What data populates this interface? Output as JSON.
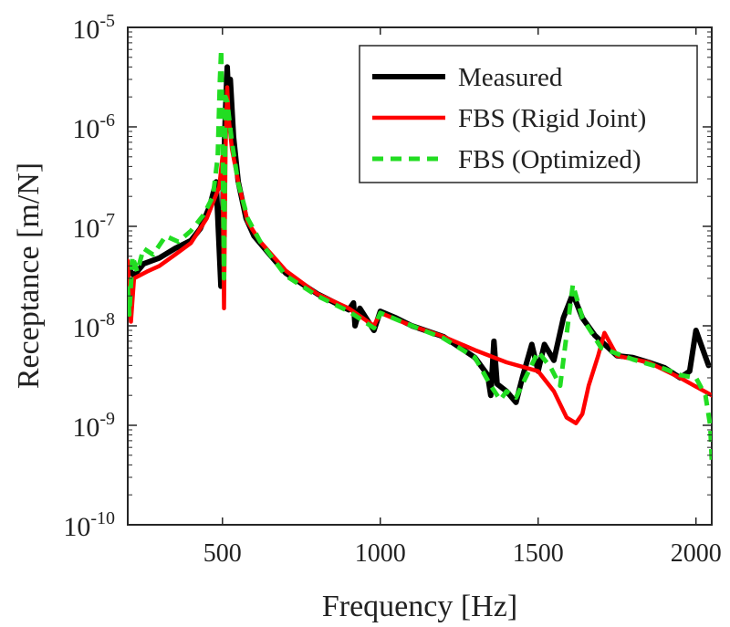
{
  "chart_data": {
    "type": "line",
    "xlabel": "Frequency [Hz]",
    "ylabel": "Receptance [m/N]",
    "yscale": "log",
    "xlim": [
      200,
      2050
    ],
    "ylim": [
      1e-10,
      1e-05
    ],
    "xticks": [
      500,
      1000,
      1500,
      2000
    ],
    "yticks": [
      {
        "value": 1e-10,
        "base": "10",
        "exp": "-10"
      },
      {
        "value": 1e-09,
        "base": "10",
        "exp": "-9"
      },
      {
        "value": 1e-08,
        "base": "10",
        "exp": "-8"
      },
      {
        "value": 1e-07,
        "base": "10",
        "exp": "-7"
      },
      {
        "value": 1e-06,
        "base": "10",
        "exp": "-6"
      },
      {
        "value": 1e-05,
        "base": "10",
        "exp": "-5"
      }
    ],
    "grid": false,
    "legend_position": "top-right",
    "series": [
      {
        "name": "Measured",
        "color": "#000000",
        "style": "solid",
        "points": [
          [
            200,
            3.8e-08
          ],
          [
            220,
            3.2e-08
          ],
          [
            250,
            4.2e-08
          ],
          [
            300,
            4.8e-08
          ],
          [
            350,
            6e-08
          ],
          [
            400,
            7.2e-08
          ],
          [
            430,
            9.5e-08
          ],
          [
            460,
            1.6e-07
          ],
          [
            480,
            2.8e-07
          ],
          [
            495,
            2.5e-08
          ],
          [
            505,
            5e-07
          ],
          [
            510,
            1.5e-06
          ],
          [
            515,
            4e-06
          ],
          [
            520,
            1.8e-06
          ],
          [
            525,
            3e-06
          ],
          [
            535,
            8e-07
          ],
          [
            550,
            2.8e-07
          ],
          [
            575,
            1.2e-07
          ],
          [
            600,
            8e-08
          ],
          [
            650,
            5.2e-08
          ],
          [
            700,
            3.4e-08
          ],
          [
            800,
            2.1e-08
          ],
          [
            900,
            1.45e-08
          ],
          [
            915,
            1.7e-08
          ],
          [
            920,
            1e-08
          ],
          [
            935,
            1.5e-08
          ],
          [
            980,
            9e-09
          ],
          [
            1000,
            1.4e-08
          ],
          [
            1050,
            1.2e-08
          ],
          [
            1100,
            1e-08
          ],
          [
            1200,
            7.8e-09
          ],
          [
            1300,
            4.8e-09
          ],
          [
            1340,
            3.2e-09
          ],
          [
            1350,
            2e-09
          ],
          [
            1360,
            7e-09
          ],
          [
            1370,
            2.6e-09
          ],
          [
            1400,
            2.2e-09
          ],
          [
            1430,
            1.7e-09
          ],
          [
            1450,
            3e-09
          ],
          [
            1480,
            6.5e-09
          ],
          [
            1500,
            3.5e-09
          ],
          [
            1520,
            6.5e-09
          ],
          [
            1550,
            4.5e-09
          ],
          [
            1580,
            1.2e-08
          ],
          [
            1610,
            2.1e-08
          ],
          [
            1640,
            1.2e-08
          ],
          [
            1680,
            8e-09
          ],
          [
            1750,
            5e-09
          ],
          [
            1800,
            4.8e-09
          ],
          [
            1850,
            4.3e-09
          ],
          [
            1900,
            3.8e-09
          ],
          [
            1950,
            3e-09
          ],
          [
            1980,
            3.5e-09
          ],
          [
            2000,
            9e-09
          ],
          [
            2020,
            6e-09
          ],
          [
            2040,
            4e-09
          ]
        ]
      },
      {
        "name": "FBS (Rigid Joint)",
        "color": "#ff0000",
        "style": "solid",
        "points": [
          [
            200,
            4.5e-08
          ],
          [
            210,
            1.1e-08
          ],
          [
            220,
            3e-08
          ],
          [
            260,
            3.5e-08
          ],
          [
            300,
            4e-08
          ],
          [
            350,
            5.2e-08
          ],
          [
            400,
            6.8e-08
          ],
          [
            450,
            1.2e-07
          ],
          [
            490,
            2.5e-07
          ],
          [
            500,
            5e-07
          ],
          [
            505,
            1.5e-08
          ],
          [
            510,
            6e-07
          ],
          [
            515,
            2.5e-06
          ],
          [
            520,
            1.2e-06
          ],
          [
            530,
            6e-07
          ],
          [
            550,
            2.8e-07
          ],
          [
            580,
            1.1e-07
          ],
          [
            620,
            7e-08
          ],
          [
            700,
            3.6e-08
          ],
          [
            800,
            2.1e-08
          ],
          [
            900,
            1.5e-08
          ],
          [
            980,
            1e-08
          ],
          [
            1000,
            1.35e-08
          ],
          [
            1100,
            1e-08
          ],
          [
            1200,
            7.8e-09
          ],
          [
            1300,
            5.7e-09
          ],
          [
            1400,
            4.3e-09
          ],
          [
            1500,
            3.5e-09
          ],
          [
            1550,
            2.2e-09
          ],
          [
            1590,
            1.2e-09
          ],
          [
            1620,
            1.05e-09
          ],
          [
            1640,
            1.3e-09
          ],
          [
            1660,
            2.5e-09
          ],
          [
            1690,
            5e-09
          ],
          [
            1710,
            8.5e-09
          ],
          [
            1750,
            5e-09
          ],
          [
            1850,
            4.3e-09
          ],
          [
            1950,
            3e-09
          ],
          [
            2050,
            2e-09
          ]
        ]
      },
      {
        "name": "FBS (Optimized)",
        "color": "#22dd22",
        "style": "dashed",
        "points": [
          [
            200,
            2.5e-08
          ],
          [
            205,
            1.3e-08
          ],
          [
            215,
            5e-08
          ],
          [
            230,
            3.5e-08
          ],
          [
            250,
            6e-08
          ],
          [
            280,
            5.2e-08
          ],
          [
            320,
            8e-08
          ],
          [
            360,
            7e-08
          ],
          [
            400,
            9e-08
          ],
          [
            440,
            1.3e-07
          ],
          [
            470,
            2e-07
          ],
          [
            485,
            5e-07
          ],
          [
            492,
            3e-06
          ],
          [
            496,
            6e-06
          ],
          [
            500,
            1e-06
          ],
          [
            505,
            3e-08
          ],
          [
            510,
            2e-06
          ],
          [
            515,
            1.8e-06
          ],
          [
            530,
            7e-07
          ],
          [
            550,
            2.7e-07
          ],
          [
            580,
            1.2e-07
          ],
          [
            620,
            7e-08
          ],
          [
            700,
            3.2e-08
          ],
          [
            800,
            2e-08
          ],
          [
            900,
            1.4e-08
          ],
          [
            980,
            9.5e-09
          ],
          [
            1000,
            1.35e-08
          ],
          [
            1100,
            1e-08
          ],
          [
            1200,
            7.5e-09
          ],
          [
            1300,
            4.8e-09
          ],
          [
            1350,
            2.5e-09
          ],
          [
            1380,
            1.8e-09
          ],
          [
            1400,
            2.2e-09
          ],
          [
            1430,
            1.9e-09
          ],
          [
            1460,
            3e-09
          ],
          [
            1500,
            5.5e-09
          ],
          [
            1540,
            3.8e-09
          ],
          [
            1570,
            2.5e-09
          ],
          [
            1610,
            2.6e-08
          ],
          [
            1640,
            1.2e-08
          ],
          [
            1700,
            6e-09
          ],
          [
            1800,
            4.6e-09
          ],
          [
            1900,
            3.7e-09
          ],
          [
            1950,
            3.2e-09
          ],
          [
            2000,
            3e-09
          ],
          [
            2030,
            2e-09
          ],
          [
            2045,
            1e-09
          ],
          [
            2050,
            4.5e-10
          ]
        ]
      }
    ]
  }
}
